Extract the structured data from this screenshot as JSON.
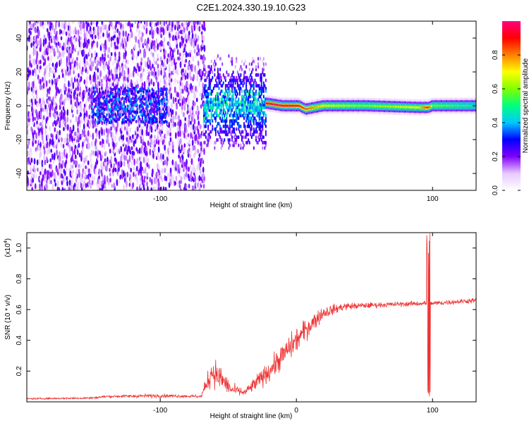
{
  "title": "C2E1.2024.330.19.10.G23",
  "chart_data": [
    {
      "type": "heatmap",
      "xlabel": "Height of straight line (km)",
      "ylabel": "Frequency (Hz)",
      "xlim": [
        -198,
        132
      ],
      "ylim": [
        -50,
        50
      ],
      "xticks": [
        -100,
        0,
        100
      ],
      "xtick_labels": [
        "-100",
        "",
        "100"
      ],
      "yticks": [
        -40,
        -20,
        0,
        20,
        40
      ],
      "ytick_labels": [
        "-40",
        "-20",
        "0",
        "20",
        "40"
      ],
      "colorbar": {
        "label": "Normalized spectral amplitude",
        "range": [
          0,
          1
        ],
        "ticks": [
          0.0,
          0.2,
          0.4,
          0.6,
          0.8
        ],
        "tick_labels": [
          "0.0",
          "0.2",
          "0.4",
          "0.6",
          "0.8"
        ],
        "colors": [
          "#ffffff",
          "#e8c8ff",
          "#8000ff",
          "#0000ff",
          "#00c8ff",
          "#00ff80",
          "#80ff00",
          "#ffff00",
          "#ff8000",
          "#ff0000",
          "#ff0080"
        ]
      },
      "noise_region": {
        "x_start": -198,
        "x_end": -68,
        "amplitude_range": [
          0.05,
          0.25
        ]
      },
      "transition_region": {
        "x_start": -68,
        "x_end": -22
      },
      "ridge": [
        {
          "x": -22,
          "y": 1.5,
          "amp": 0.95
        },
        {
          "x": -10,
          "y": 0,
          "amp": 0.95
        },
        {
          "x": 2,
          "y": 0,
          "amp": 0.9
        },
        {
          "x": 7,
          "y": -2,
          "amp": 0.85
        },
        {
          "x": 20,
          "y": 0,
          "amp": 0.7
        },
        {
          "x": 50,
          "y": 0,
          "amp": 0.6
        },
        {
          "x": 90,
          "y": -1,
          "amp": 0.7
        },
        {
          "x": 97,
          "y": -1,
          "amp": 0.9
        },
        {
          "x": 100,
          "y": 0,
          "amp": 0.6
        },
        {
          "x": 132,
          "y": 0,
          "amp": 0.5
        }
      ]
    },
    {
      "type": "line",
      "xlabel": "Height of straight line (km)",
      "ylabel": "SNR (10 * v/v)",
      "yscale_label": "(x10",
      "yscale_exp": "4",
      "yscale_close": ")",
      "xlim": [
        -198,
        132
      ],
      "ylim": [
        0,
        1.1
      ],
      "xticks": [
        -100,
        0,
        100
      ],
      "xtick_labels": [
        "-100",
        "0",
        "100"
      ],
      "yticks": [
        0.2,
        0.4,
        0.6,
        0.8,
        1.0
      ],
      "ytick_labels": [
        "0.2",
        "0.4",
        "0.6",
        "0.8",
        "1.0"
      ],
      "color": "#ee3333",
      "envelope": [
        {
          "x": -198,
          "y": 0.02,
          "noise": 0.006
        },
        {
          "x": -150,
          "y": 0.025,
          "noise": 0.008
        },
        {
          "x": -140,
          "y": 0.035,
          "noise": 0.01
        },
        {
          "x": -100,
          "y": 0.04,
          "noise": 0.015
        },
        {
          "x": -70,
          "y": 0.035,
          "noise": 0.01
        },
        {
          "x": -62,
          "y": 0.2,
          "noise": 0.12
        },
        {
          "x": -55,
          "y": 0.15,
          "noise": 0.1
        },
        {
          "x": -48,
          "y": 0.08,
          "noise": 0.05
        },
        {
          "x": -38,
          "y": 0.06,
          "noise": 0.03
        },
        {
          "x": -30,
          "y": 0.12,
          "noise": 0.06
        },
        {
          "x": -20,
          "y": 0.2,
          "noise": 0.08
        },
        {
          "x": -10,
          "y": 0.3,
          "noise": 0.1
        },
        {
          "x": 0,
          "y": 0.4,
          "noise": 0.1
        },
        {
          "x": 10,
          "y": 0.5,
          "noise": 0.08
        },
        {
          "x": 20,
          "y": 0.58,
          "noise": 0.05
        },
        {
          "x": 35,
          "y": 0.62,
          "noise": 0.03
        },
        {
          "x": 60,
          "y": 0.63,
          "noise": 0.02
        },
        {
          "x": 92,
          "y": 0.64,
          "noise": 0.02
        },
        {
          "x": 100,
          "y": 0.64,
          "noise": 0.02
        },
        {
          "x": 132,
          "y": 0.66,
          "noise": 0.02
        }
      ],
      "glitch": {
        "x": 97,
        "y_min": 0.02,
        "y_max": 1.1
      }
    }
  ]
}
